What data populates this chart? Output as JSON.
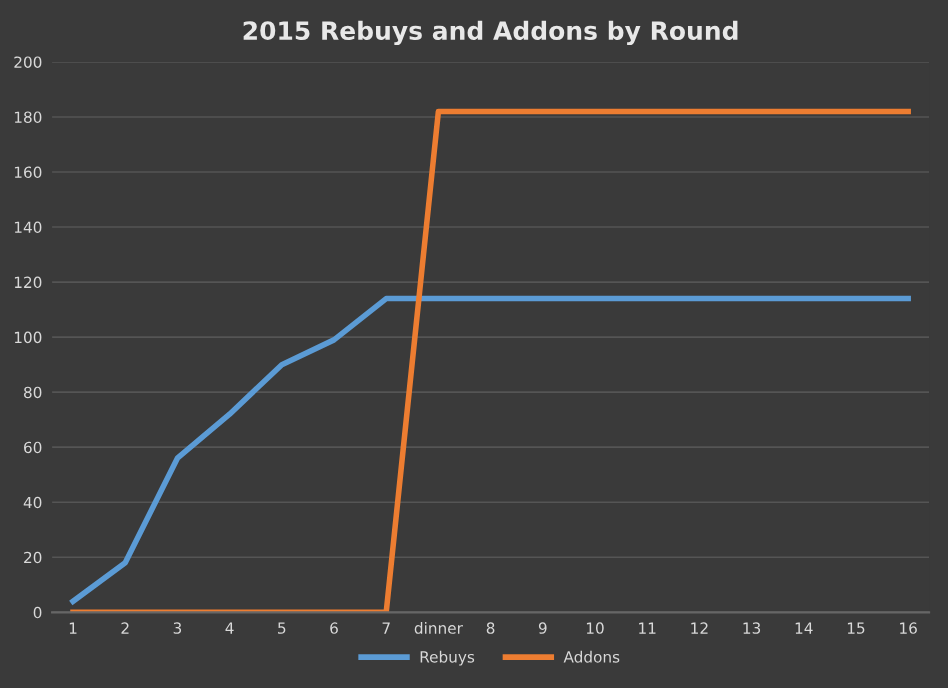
{
  "chart_data": {
    "type": "line",
    "title": "2015 Rebuys and Addons by Round",
    "categories": [
      "1",
      "2",
      "3",
      "4",
      "5",
      "6",
      "7",
      "dinner",
      "8",
      "9",
      "10",
      "11",
      "12",
      "13",
      "14",
      "15",
      "16"
    ],
    "series": [
      {
        "name": "Rebuys",
        "color": "#5b9bd5",
        "values": [
          4,
          18,
          56,
          72,
          90,
          99,
          114,
          114,
          114,
          114,
          114,
          114,
          114,
          114,
          114,
          114,
          114
        ]
      },
      {
        "name": "Addons",
        "color": "#ed7d31",
        "values": [
          0,
          0,
          0,
          0,
          0,
          0,
          0,
          182,
          182,
          182,
          182,
          182,
          182,
          182,
          182,
          182,
          182
        ]
      }
    ],
    "ylim": [
      0,
      200
    ],
    "yticks": [
      0,
      20,
      40,
      60,
      80,
      100,
      120,
      140,
      160,
      180,
      200
    ],
    "grid": "y",
    "legend": "bottom",
    "marker": "none",
    "line_style": "solid"
  }
}
